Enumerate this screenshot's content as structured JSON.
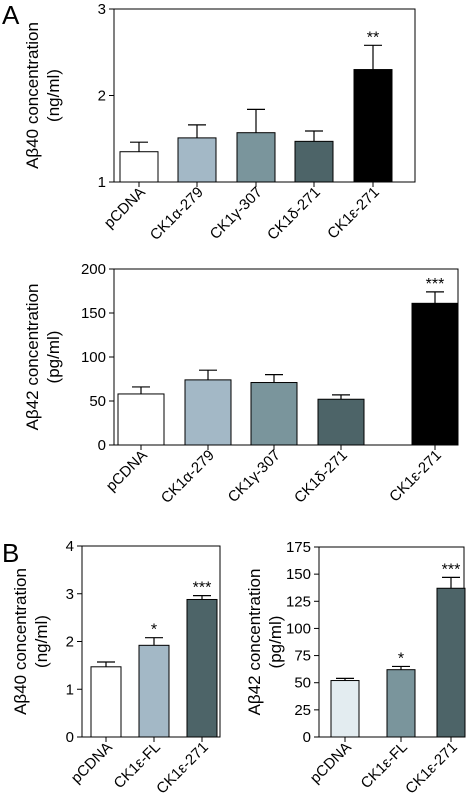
{
  "panels": {
    "a": "A",
    "b": "B"
  },
  "chart_data": [
    {
      "type": "bar",
      "ylabel": [
        "Aβ40 concentration",
        "(ng/ml)"
      ],
      "categories": [
        "pCDNA",
        "CK1α-279",
        "CK1γ-307",
        "CK1δ-271",
        "CK1ε-271"
      ],
      "values": [
        1.35,
        1.51,
        1.57,
        1.47,
        2.3
      ],
      "errors": [
        0.11,
        0.15,
        0.27,
        0.12,
        0.28
      ],
      "significance": [
        "",
        "",
        "",
        "",
        "**"
      ],
      "colors": [
        "#ffffff",
        "#a3b8c6",
        "#7a959c",
        "#4d6468",
        "#000000"
      ],
      "ylim": [
        1,
        3
      ],
      "yticks": [
        "1",
        "2",
        "3"
      ],
      "ytick_values": [
        1,
        2,
        3
      ]
    },
    {
      "type": "bar",
      "ylabel": [
        "Aβ42 concentration",
        "(pg/ml)"
      ],
      "categories": [
        "pCDNA",
        "CK1α-279",
        "CK1γ-307",
        "CK1δ-271",
        "CK1ε-271"
      ],
      "values": [
        58,
        74,
        71,
        52,
        161
      ],
      "errors": [
        8,
        11,
        9,
        5,
        13
      ],
      "significance": [
        "",
        "",
        "",
        "",
        "***"
      ],
      "colors": [
        "#ffffff",
        "#a3b8c6",
        "#7a959c",
        "#4d6468",
        "#000000"
      ],
      "ylim": [
        0,
        200
      ],
      "yticks": [
        "0",
        "50",
        "100",
        "150",
        "200"
      ],
      "ytick_values": [
        0,
        50,
        100,
        150,
        200
      ]
    },
    {
      "type": "bar",
      "ylabel": [
        "Aβ40 concentration",
        "(ng/ml)"
      ],
      "categories": [
        "pCDNA",
        "CK1ε-FL",
        "CK1ε-271"
      ],
      "values": [
        1.47,
        1.92,
        2.88
      ],
      "errors": [
        0.1,
        0.16,
        0.08
      ],
      "significance": [
        "",
        "*",
        "***"
      ],
      "colors": [
        "#ffffff",
        "#a3b8c6",
        "#4d6468"
      ],
      "ylim": [
        0,
        4
      ],
      "yticks": [
        "0",
        "1",
        "2",
        "3",
        "4"
      ],
      "ytick_values": [
        0,
        1,
        2,
        3,
        4
      ]
    },
    {
      "type": "bar",
      "ylabel": [
        "Aβ42 concentration",
        "(pg/ml)"
      ],
      "categories": [
        "pCDNA",
        "CK1ε-FL",
        "CK1ε-271"
      ],
      "values": [
        52,
        62,
        137
      ],
      "errors": [
        2,
        3,
        10
      ],
      "significance": [
        "",
        "*",
        "***"
      ],
      "colors": [
        "#e3ecf0",
        "#7a959c",
        "#4d6468"
      ],
      "ylim": [
        0,
        175
      ],
      "yticks": [
        "0",
        "25",
        "50",
        "75",
        "100",
        "125",
        "150",
        "175"
      ],
      "ytick_values": [
        0,
        25,
        50,
        75,
        100,
        125,
        150,
        175
      ]
    }
  ]
}
